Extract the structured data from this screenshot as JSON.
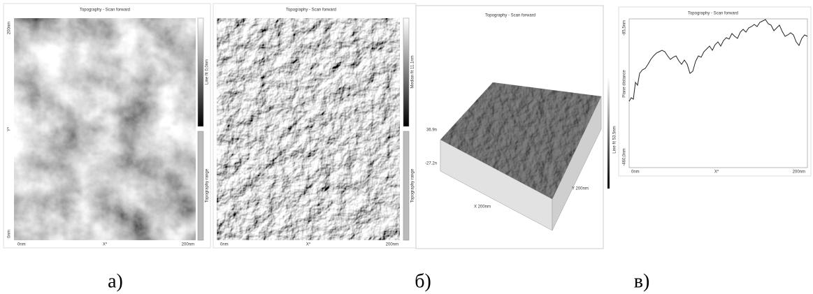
{
  "panels": [
    {
      "title": "Topography - Scan forward",
      "y_top": "200nm",
      "y_mid": "Y*",
      "y_bottom": "0nm",
      "x_left": "0nm",
      "x_mid": "X*",
      "x_right": "200nm",
      "colorbar_top": "Line fit 0,0nm",
      "colorbar_bottom": "Topography range",
      "caption": "а)"
    },
    {
      "title": "Topography - Scan forward",
      "x_left": "0nm",
      "x_mid": "X*",
      "x_right": "200nm",
      "colorbar_top": "Median fit 11.1nm",
      "colorbar_bottom": "Topography range",
      "caption": "б)"
    },
    {
      "title": "Topography - Scan forward",
      "z_top": "36.9n",
      "z_bottom": "-27.2n",
      "y_axis": "Y 200nm",
      "x_axis": "X 200nm",
      "colorbar": "Line fit 53.5nm"
    },
    {
      "title": "Topography - Scan forward",
      "y_top": "-85,5nm",
      "y_label": "Plane distance",
      "y_bottom": "-460,0nm",
      "x_left": "0nm",
      "x_mid": "X*",
      "x_right": "200nm",
      "caption": "в)"
    }
  ]
}
